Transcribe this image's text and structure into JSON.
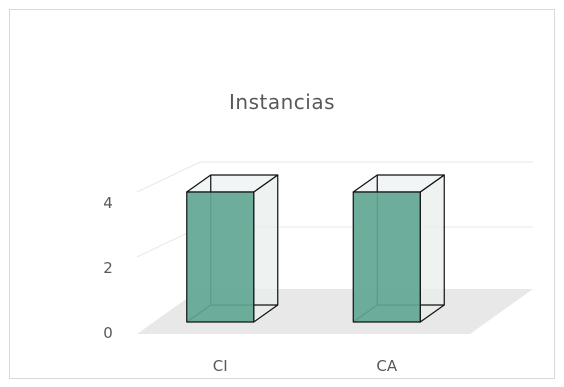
{
  "chart_data": {
    "type": "bar",
    "title": "Instancias",
    "categories": [
      "CI",
      "CA"
    ],
    "values": [
      4,
      4
    ],
    "y_ticks": [
      0,
      2,
      4
    ],
    "ylim": [
      0,
      4.5
    ],
    "grid": true,
    "legend": "none",
    "style": "3d-column",
    "colors": {
      "bar_front": "#5fa793",
      "bar_side": "#e8efee",
      "edge": "#111111",
      "floor": "#e8e8e8",
      "grid": "#e8e8e8",
      "text": "#595959"
    }
  }
}
